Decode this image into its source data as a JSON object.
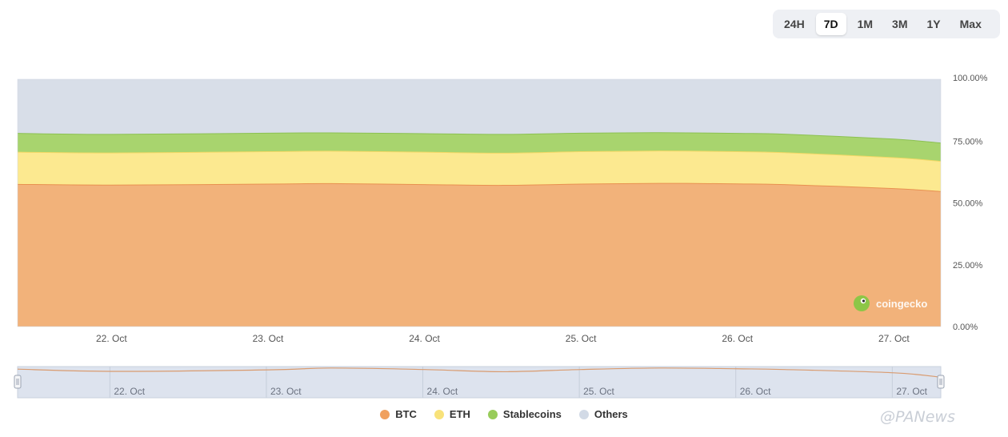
{
  "range_buttons": [
    "24H",
    "7D",
    "1M",
    "3M",
    "1Y",
    "Max"
  ],
  "active_range": "7D",
  "colors": {
    "btc": "#f2b27a",
    "btc_line": "#e89150",
    "eth": "#fce990",
    "stablecoins": "#a8d46e",
    "others": "#d8dee8",
    "navigator_line": "#d99b6f"
  },
  "legend": [
    {
      "key": "btc",
      "label": "BTC",
      "color": "#f0a05e"
    },
    {
      "key": "eth",
      "label": "ETH",
      "color": "#f8e27a"
    },
    {
      "key": "stablecoins",
      "label": "Stablecoins",
      "color": "#98cc5a"
    },
    {
      "key": "others",
      "label": "Others",
      "color": "#d2dae6"
    }
  ],
  "watermark_brand": "coingecko",
  "page_watermark": "@PANews",
  "chart_data": {
    "type": "area",
    "stacked": true,
    "x_labels": [
      "22. Oct",
      "23. Oct",
      "24. Oct",
      "25. Oct",
      "26. Oct",
      "27. Oct"
    ],
    "x_days": [
      21.4,
      22.0,
      23.0,
      23.4,
      24.0,
      24.5,
      25.0,
      25.5,
      26.0,
      26.3,
      27.0,
      27.3
    ],
    "y_ticks": [
      "0.00%",
      "25.00%",
      "50.00%",
      "75.00%",
      "100.00%"
    ],
    "ylim": [
      0,
      100
    ],
    "series": [
      {
        "name": "BTC",
        "values": [
          57.5,
          57.2,
          57.6,
          57.8,
          57.4,
          57.1,
          57.6,
          57.9,
          57.7,
          57.4,
          55.8,
          54.6
        ]
      },
      {
        "name": "ETH",
        "values": [
          13.0,
          13.0,
          13.1,
          13.1,
          13.1,
          13.0,
          13.1,
          13.1,
          13.0,
          12.9,
          12.5,
          12.2
        ]
      },
      {
        "name": "Stablecoins",
        "values": [
          7.6,
          7.5,
          7.5,
          7.4,
          7.5,
          7.6,
          7.5,
          7.4,
          7.4,
          7.5,
          7.5,
          7.4
        ]
      },
      {
        "name": "Others",
        "values": [
          21.9,
          22.3,
          21.8,
          21.7,
          22.0,
          22.3,
          21.8,
          21.6,
          21.9,
          22.2,
          24.2,
          25.8
        ]
      }
    ],
    "navigator_series": [
      60.6,
      59.4,
      60.2,
      61.2,
      60.4,
      59.2,
      60.4,
      61.2,
      60.8,
      60.4,
      58.6,
      56.2
    ]
  }
}
